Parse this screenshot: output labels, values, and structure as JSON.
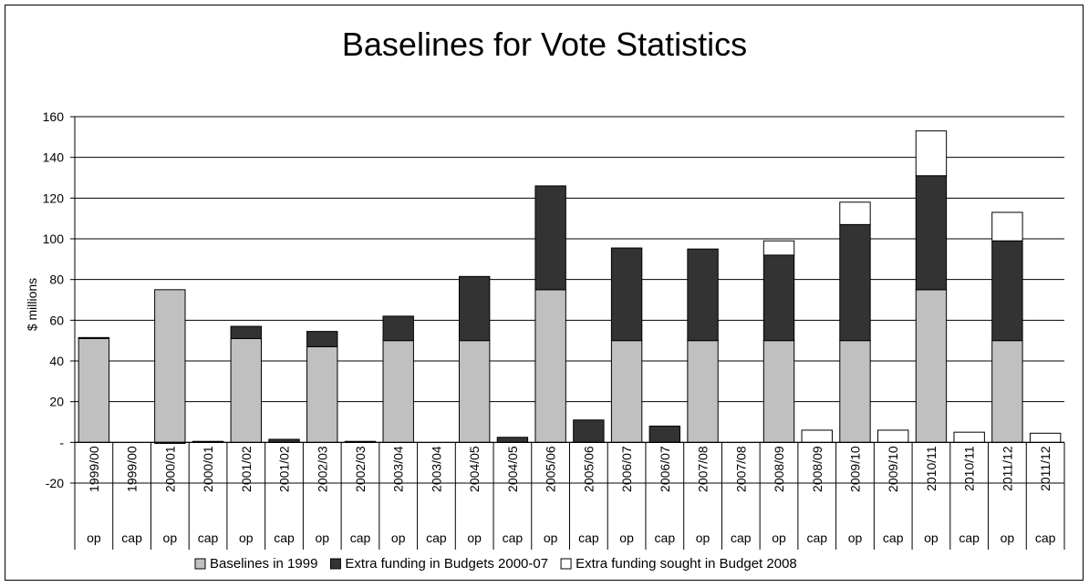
{
  "chart_data": {
    "type": "bar",
    "stacked": true,
    "title": "Baselines for Vote Statistics",
    "ylabel": "$ millions",
    "xlabel": "",
    "ylim": [
      -20,
      160
    ],
    "yticks": [
      -20,
      0,
      20,
      40,
      60,
      80,
      100,
      120,
      140,
      160
    ],
    "ytick_labels": [
      "-20",
      "-",
      "20",
      "40",
      "60",
      "80",
      "100",
      "120",
      "140",
      "160"
    ],
    "grid": true,
    "legend_position": "bottom",
    "categories": [
      "1999/00",
      "1999/00",
      "2000/01",
      "2000/01",
      "2001/02",
      "2001/02",
      "2002/03",
      "2002/03",
      "2003/04",
      "2003/04",
      "2004/05",
      "2004/05",
      "2005/06",
      "2005/06",
      "2006/07",
      "2006/07",
      "2007/08",
      "2007/08",
      "2008/09",
      "2008/09",
      "2009/10",
      "2009/10",
      "2010/11",
      "2010/11",
      "2011/12",
      "2011/12"
    ],
    "category_types": [
      "op",
      "cap",
      "op",
      "cap",
      "op",
      "cap",
      "op",
      "cap",
      "op",
      "cap",
      "op",
      "cap",
      "op",
      "cap",
      "op",
      "cap",
      "op",
      "cap",
      "op",
      "cap",
      "op",
      "cap",
      "op",
      "cap",
      "op",
      "cap"
    ],
    "series": [
      {
        "name": "Baselines in 1999",
        "color": "#c0c0c0",
        "values": [
          51,
          0,
          75,
          0,
          51,
          0,
          47,
          0,
          50,
          0,
          50,
          0,
          75,
          0,
          50,
          0,
          50,
          0,
          50,
          0,
          50,
          0,
          75,
          0,
          50,
          0
        ]
      },
      {
        "name": "Extra funding in Budgets 2000-07",
        "color": "#333333",
        "values": [
          0.5,
          0,
          -0.5,
          0.5,
          6,
          1.5,
          7.5,
          0.5,
          12,
          0,
          31.5,
          2.5,
          51,
          11,
          45.5,
          8,
          45,
          0,
          42,
          0,
          57,
          0,
          56,
          0,
          49,
          0
        ]
      },
      {
        "name": "Extra funding sought in Budget 2008",
        "color": "#ffffff",
        "values": [
          0,
          0,
          0,
          0,
          0,
          0,
          0,
          0,
          0,
          0,
          0,
          0,
          0,
          0,
          0,
          0,
          0,
          0,
          7,
          6,
          11,
          6,
          22,
          5,
          14,
          4.5
        ]
      }
    ]
  }
}
